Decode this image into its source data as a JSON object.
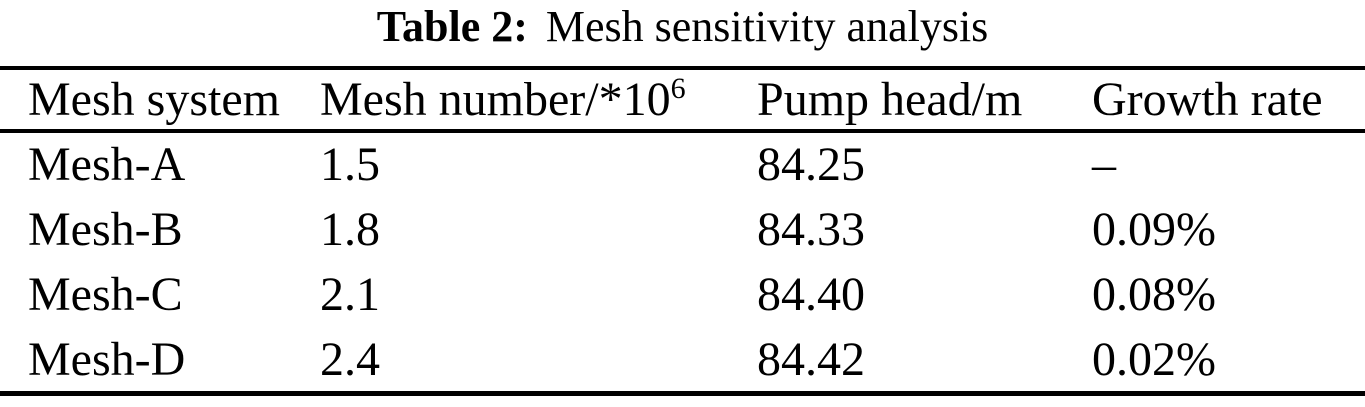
{
  "colors": {
    "text": "#000000",
    "background": "#ffffff",
    "rule": "#000000"
  },
  "caption": {
    "label": "Table 2:",
    "title": "Mesh sensitivity analysis"
  },
  "chart_data": {
    "type": "table",
    "title": "Table 2: Mesh sensitivity analysis",
    "columns": [
      "Mesh system",
      "Mesh number/*10^6",
      "Pump head/m",
      "Growth rate"
    ],
    "rows": [
      [
        "Mesh-A",
        1.5,
        84.25,
        "–"
      ],
      [
        "Mesh-B",
        1.8,
        84.33,
        "0.09%"
      ],
      [
        "Mesh-C",
        2.1,
        84.4,
        "0.08%"
      ],
      [
        "Mesh-D",
        2.4,
        84.42,
        "0.02%"
      ]
    ]
  },
  "table": {
    "columns": [
      {
        "label": "Mesh system"
      },
      {
        "label": "Mesh number/*10",
        "sup": "6"
      },
      {
        "label": "Pump head/m"
      },
      {
        "label": "Growth rate"
      }
    ],
    "rows": [
      {
        "mesh_system": "Mesh-A",
        "mesh_number": "1.5",
        "pump_head": "84.25",
        "growth_rate": "–"
      },
      {
        "mesh_system": "Mesh-B",
        "mesh_number": "1.8",
        "pump_head": "84.33",
        "growth_rate": "0.09%"
      },
      {
        "mesh_system": "Mesh-C",
        "mesh_number": "2.1",
        "pump_head": "84.40",
        "growth_rate": "0.08%"
      },
      {
        "mesh_system": "Mesh-D",
        "mesh_number": "2.4",
        "pump_head": "84.42",
        "growth_rate": "0.02%"
      }
    ]
  }
}
